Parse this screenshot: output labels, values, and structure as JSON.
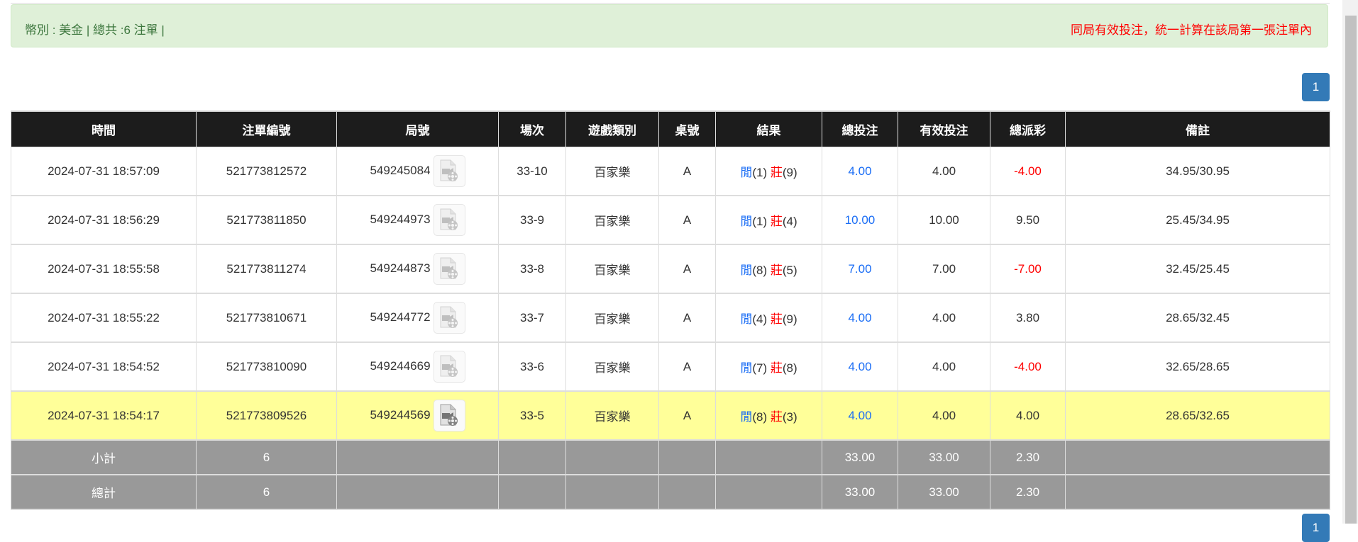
{
  "alert": {
    "summary": "幣別 : 美金 | 總共 :6 注單 |",
    "notice": "同局有效投注，統一計算在該局第一張注單內"
  },
  "pagination": {
    "current_page": "1"
  },
  "colors": {
    "header_bg": "#1c1c1c",
    "alert_bg": "#dff0d8",
    "highlight_row": "#ffff99",
    "summary_bg": "#999999",
    "blue": "#1a6df5",
    "red": "#ff0000",
    "page_button": "#337ab7"
  },
  "table": {
    "headers": [
      "時間",
      "注單編號",
      "局號",
      "場次",
      "遊戲類別",
      "桌號",
      "結果",
      "總投注",
      "有效投注",
      "總派彩",
      "備註"
    ],
    "rows": [
      {
        "time": "2024-07-31 18:57:09",
        "bet_id": "521773812572",
        "round_id": "549245084",
        "session": "33-10",
        "game": "百家樂",
        "table": "A",
        "player_label": "閒",
        "player_pts": "(1)",
        "banker_label": "莊",
        "banker_pts": "(9)",
        "total_bet": "4.00",
        "valid_bet": "4.00",
        "payout": "-4.00",
        "payout_negative": true,
        "note": "34.95/30.95"
      },
      {
        "time": "2024-07-31 18:56:29",
        "bet_id": "521773811850",
        "round_id": "549244973",
        "session": "33-9",
        "game": "百家樂",
        "table": "A",
        "player_label": "閒",
        "player_pts": "(1)",
        "banker_label": "莊",
        "banker_pts": "(4)",
        "total_bet": "10.00",
        "valid_bet": "10.00",
        "payout": "9.50",
        "payout_negative": false,
        "note": "25.45/34.95"
      },
      {
        "time": "2024-07-31 18:55:58",
        "bet_id": "521773811274",
        "round_id": "549244873",
        "session": "33-8",
        "game": "百家樂",
        "table": "A",
        "player_label": "閒",
        "player_pts": "(8)",
        "banker_label": "莊",
        "banker_pts": "(5)",
        "total_bet": "7.00",
        "valid_bet": "7.00",
        "payout": "-7.00",
        "payout_negative": true,
        "note": "32.45/25.45"
      },
      {
        "time": "2024-07-31 18:55:22",
        "bet_id": "521773810671",
        "round_id": "549244772",
        "session": "33-7",
        "game": "百家樂",
        "table": "A",
        "player_label": "閒",
        "player_pts": "(4)",
        "banker_label": "莊",
        "banker_pts": "(9)",
        "total_bet": "4.00",
        "valid_bet": "4.00",
        "payout": "3.80",
        "payout_negative": false,
        "note": "28.65/32.45"
      },
      {
        "time": "2024-07-31 18:54:52",
        "bet_id": "521773810090",
        "round_id": "549244669",
        "session": "33-6",
        "game": "百家樂",
        "table": "A",
        "player_label": "閒",
        "player_pts": "(7)",
        "banker_label": "莊",
        "banker_pts": "(8)",
        "total_bet": "4.00",
        "valid_bet": "4.00",
        "payout": "-4.00",
        "payout_negative": true,
        "note": "32.65/28.65"
      },
      {
        "time": "2024-07-31 18:54:17",
        "bet_id": "521773809526",
        "round_id": "549244569",
        "session": "33-5",
        "game": "百家樂",
        "table": "A",
        "player_label": "閒",
        "player_pts": "(8)",
        "banker_label": "莊",
        "banker_pts": "(3)",
        "total_bet": "4.00",
        "valid_bet": "4.00",
        "payout": "4.00",
        "payout_negative": false,
        "note": "28.65/32.65",
        "highlighted": true
      }
    ],
    "subtotal": {
      "label": "小計",
      "count": "6",
      "total_bet": "33.00",
      "valid_bet": "33.00",
      "payout": "2.30"
    },
    "total": {
      "label": "總計",
      "count": "6",
      "total_bet": "33.00",
      "valid_bet": "33.00",
      "payout": "2.30"
    }
  }
}
